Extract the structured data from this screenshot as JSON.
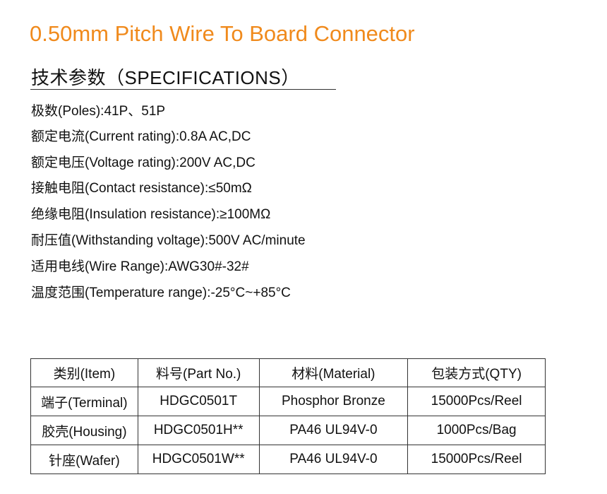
{
  "title": "0.50mm Pitch Wire To Board Connector",
  "heading": "技术参数（SPECIFICATIONS）",
  "specs": [
    "极数(Poles):41P、51P",
    "额定电流(Current rating):0.8A AC,DC",
    "额定电压(Voltage rating):200V AC,DC",
    "接触电阻(Contact resistance):≤50mΩ",
    "绝缘电阻(Insulation resistance):≥100MΩ",
    "耐压值(Withstanding voltage):500V AC/minute",
    "适用电线(Wire Range):AWG30#-32#",
    "温度范围(Temperature range):-25°C~+85°C"
  ],
  "table": {
    "headers": [
      "类别(Item)",
      "料号(Part No.)",
      "材料(Material)",
      "包装方式(QTY)"
    ],
    "rows": [
      [
        "端子(Terminal)",
        "HDGC0501T",
        "Phosphor Bronze",
        "15000Pcs/Reel"
      ],
      [
        "胶壳(Housing)",
        "HDGC0501H**",
        "PA46  UL94V-0",
        "1000Pcs/Bag"
      ],
      [
        "针座(Wafer)",
        "HDGC0501W**",
        "PA46  UL94V-0",
        "15000Pcs/Reel"
      ]
    ]
  },
  "colors": {
    "title": "#f08a1c"
  }
}
